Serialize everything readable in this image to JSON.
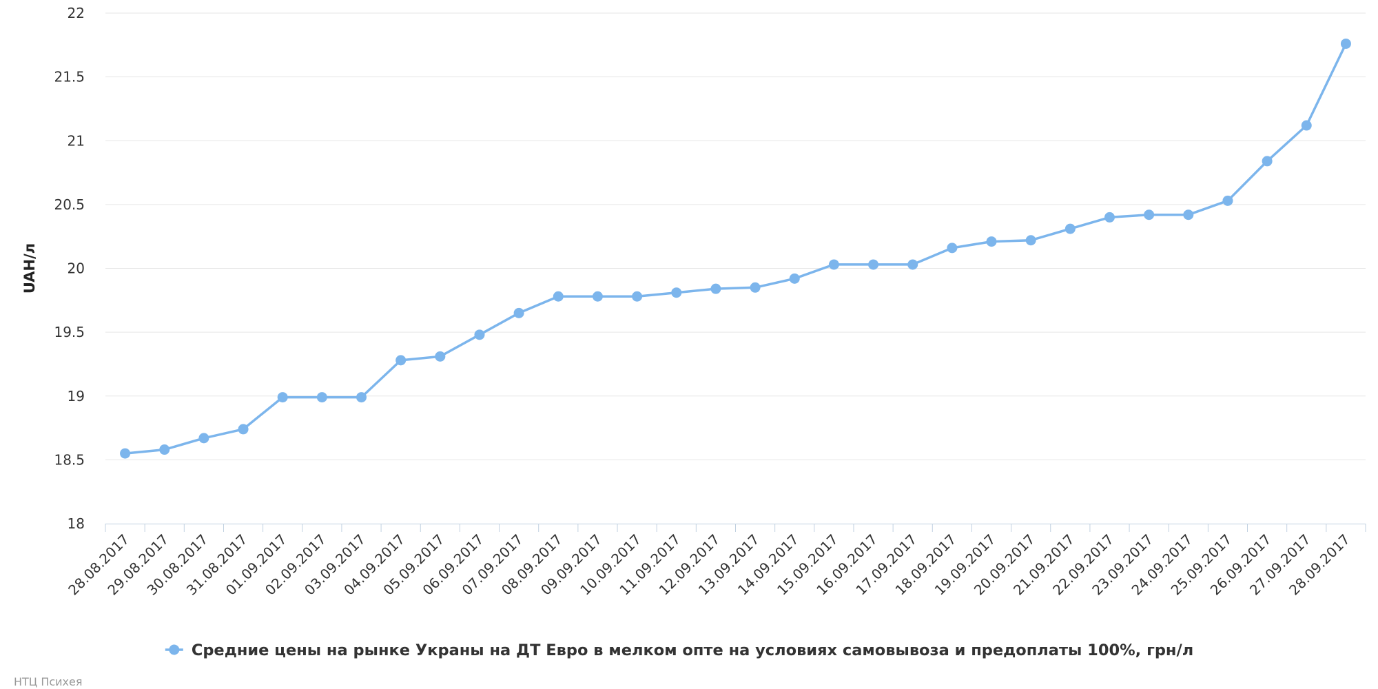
{
  "chart_data": {
    "type": "line",
    "title": "",
    "xlabel": "",
    "ylabel": "UAH/л",
    "ylim": [
      18,
      22
    ],
    "yticks": [
      "18",
      "18.5",
      "19",
      "19.5",
      "20",
      "20.5",
      "21",
      "21.5",
      "22"
    ],
    "grid": true,
    "legend_position": "bottom-center",
    "categories": [
      "28.08.2017",
      "29.08.2017",
      "30.08.2017",
      "31.08.2017",
      "01.09.2017",
      "02.09.2017",
      "03.09.2017",
      "04.09.2017",
      "05.09.2017",
      "06.09.2017",
      "07.09.2017",
      "08.09.2017",
      "09.09.2017",
      "10.09.2017",
      "11.09.2017",
      "12.09.2017",
      "13.09.2017",
      "14.09.2017",
      "15.09.2017",
      "16.09.2017",
      "17.09.2017",
      "18.09.2017",
      "19.09.2017",
      "20.09.2017",
      "21.09.2017",
      "22.09.2017",
      "23.09.2017",
      "24.09.2017",
      "25.09.2017",
      "26.09.2017",
      "27.09.2017",
      "28.09.2017"
    ],
    "series": [
      {
        "name": "Средние цены на рынке Украны на ДТ Евро в мелком опте на условиях самовывоза и предоплаты 100%, грн/л",
        "color": "#7cb5ec",
        "values": [
          18.55,
          18.58,
          18.67,
          18.74,
          18.99,
          18.99,
          18.99,
          19.28,
          19.31,
          19.48,
          19.65,
          19.78,
          19.78,
          19.78,
          19.81,
          19.84,
          19.85,
          19.92,
          20.03,
          20.03,
          20.03,
          20.16,
          20.21,
          20.22,
          20.31,
          20.4,
          20.42,
          20.42,
          20.53,
          20.84,
          21.12,
          21.76
        ]
      }
    ]
  },
  "credit": "НТЦ Психея"
}
